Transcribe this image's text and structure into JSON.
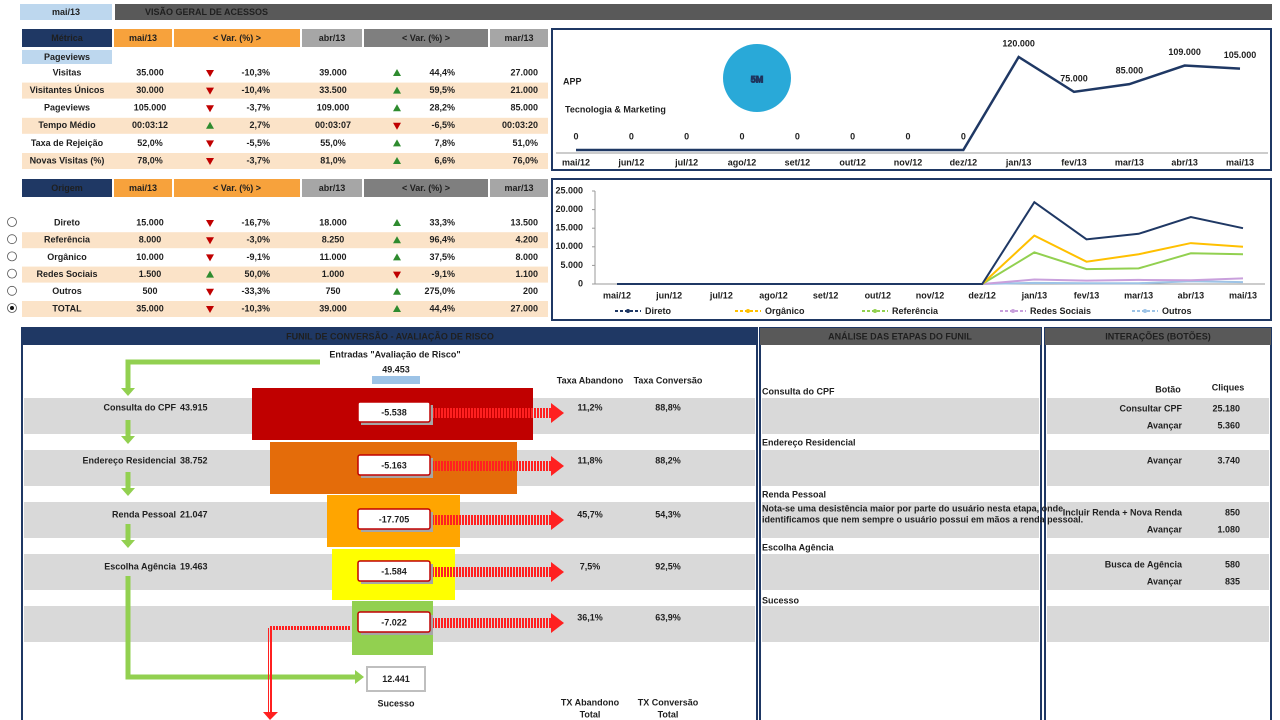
{
  "header": {
    "period": "mai/13",
    "title": "VISÃO GERAL DE ACESSOS"
  },
  "metrics_table": {
    "columns": [
      "Métrica",
      "mai/13",
      "< Var. (%) >",
      "abr/13",
      "< Var. (%) >",
      "mar/13"
    ],
    "section": "Pageviews",
    "rows": [
      {
        "label": "Visitas",
        "cells": [
          "35.000",
          "-10,3%",
          "39.000",
          "44,4%",
          "27.000"
        ],
        "trend": [
          "down",
          "up"
        ]
      },
      {
        "label": "Visitantes Únicos",
        "cells": [
          "30.000",
          "-10,4%",
          "33.500",
          "59,5%",
          "21.000"
        ],
        "trend": [
          "down",
          "up"
        ]
      },
      {
        "label": "Pageviews",
        "cells": [
          "105.000",
          "-3,7%",
          "109.000",
          "28,2%",
          "85.000"
        ],
        "trend": [
          "down",
          "up"
        ]
      },
      {
        "label": "Tempo Médio",
        "cells": [
          "00:03:12",
          "2,7%",
          "00:03:07",
          "-6,5%",
          "00:03:20"
        ],
        "trend": [
          "up",
          "down"
        ]
      },
      {
        "label": "Taxa de Rejeição",
        "cells": [
          "52,0%",
          "-5,5%",
          "55,0%",
          "7,8%",
          "51,0%"
        ],
        "trend": [
          "down",
          "up"
        ]
      },
      {
        "label": "Novas Visitas (%)",
        "cells": [
          "78,0%",
          "-3,7%",
          "81,0%",
          "6,6%",
          "76,0%"
        ],
        "trend": [
          "down",
          "up"
        ]
      }
    ]
  },
  "origin_table": {
    "columns": [
      "Origem",
      "mai/13",
      "< Var. (%) >",
      "abr/13",
      "< Var. (%) >",
      "mar/13"
    ],
    "selected": 5,
    "rows": [
      {
        "label": "Direto",
        "cells": [
          "15.000",
          "-16,7%",
          "18.000",
          "33,3%",
          "13.500"
        ],
        "trend": [
          "down",
          "up"
        ]
      },
      {
        "label": "Referência",
        "cells": [
          "8.000",
          "-3,0%",
          "8.250",
          "96,4%",
          "4.200"
        ],
        "trend": [
          "down",
          "up"
        ]
      },
      {
        "label": "Orgânico",
        "cells": [
          "10.000",
          "-9,1%",
          "11.000",
          "37,5%",
          "8.000"
        ],
        "trend": [
          "down",
          "up"
        ]
      },
      {
        "label": "Redes Sociais",
        "cells": [
          "1.500",
          "50,0%",
          "1.000",
          "-9,1%",
          "1.100"
        ],
        "trend": [
          "up",
          "down"
        ]
      },
      {
        "label": "Outros",
        "cells": [
          "500",
          "-33,3%",
          "750",
          "275,0%",
          "200"
        ],
        "trend": [
          "down",
          "up"
        ]
      },
      {
        "label": "TOTAL",
        "cells": [
          "35.000",
          "-10,3%",
          "39.000",
          "44,4%",
          "27.000"
        ],
        "trend": [
          "down",
          "up"
        ]
      }
    ]
  },
  "logo": {
    "name_left": "APP",
    "name_right": "5M",
    "tagline": "Tecnologia & Marketing"
  },
  "chart_data": [
    {
      "type": "line",
      "color": "#1f3864",
      "categories": [
        "mai/12",
        "jun/12",
        "jul/12",
        "ago/12",
        "set/12",
        "out/12",
        "nov/12",
        "dez/12",
        "jan/13",
        "fev/13",
        "mar/13",
        "abr/13",
        "mai/13"
      ],
      "values": [
        0,
        0,
        0,
        0,
        0,
        0,
        0,
        0,
        120000,
        75000,
        85000,
        109000,
        105000
      ],
      "value_labels": [
        "0",
        "0",
        "0",
        "0",
        "0",
        "0",
        "0",
        "0",
        "120.000",
        "75.000",
        "85.000",
        "109.000",
        "105.000"
      ]
    },
    {
      "type": "line",
      "legend": "bottom",
      "categories": [
        "mai/12",
        "jun/12",
        "jul/12",
        "ago/12",
        "set/12",
        "out/12",
        "nov/12",
        "dez/12",
        "jan/13",
        "fev/13",
        "mar/13",
        "abr/13",
        "mai/13"
      ],
      "ylim": [
        0,
        25000
      ],
      "yticks": [
        0,
        {
          "value": 5000,
          "label": "5.000"
        },
        {
          "value": 10000,
          "label": "10.000"
        },
        {
          "value": 15000,
          "label": "15.000"
        },
        {
          "value": 20000,
          "label": "20.000"
        },
        {
          "value": 25000,
          "label": "25.000"
        }
      ],
      "series": [
        {
          "name": "Direto",
          "color": "#1f3864",
          "values": [
            0,
            0,
            0,
            0,
            0,
            0,
            0,
            0,
            22000,
            12000,
            13500,
            18000,
            15000
          ]
        },
        {
          "name": "Orgânico",
          "color": "#ffc000",
          "values": [
            0,
            0,
            0,
            0,
            0,
            0,
            0,
            0,
            13000,
            6000,
            8000,
            11000,
            10000
          ]
        },
        {
          "name": "Referência",
          "color": "#92d050",
          "values": [
            0,
            0,
            0,
            0,
            0,
            0,
            0,
            0,
            8500,
            4000,
            4200,
            8250,
            8000
          ]
        },
        {
          "name": "Redes Sociais",
          "color": "#c9a0dc",
          "values": [
            0,
            0,
            0,
            0,
            0,
            0,
            0,
            0,
            1200,
            900,
            1100,
            1000,
            1500
          ]
        },
        {
          "name": "Outros",
          "color": "#9dc3e6",
          "values": [
            0,
            0,
            0,
            0,
            0,
            0,
            0,
            0,
            300,
            200,
            200,
            750,
            500
          ]
        }
      ]
    }
  ],
  "funnel": {
    "title": "FUNIL DE CONVERSÃO - AVALIAÇÃO DE RISCO",
    "entry_label": "Entradas \"Avaliação de Risco\"",
    "entry_value": "49.453",
    "header_abandon": "Taxa Abandono",
    "header_conversion": "Taxa Conversão",
    "stages": [
      {
        "name": "Consulta do CPF",
        "value": "43.915",
        "loss": "-5.538",
        "abandon": "11,2%",
        "conversion": "88,8%"
      },
      {
        "name": "Endereço Residencial",
        "value": "38.752",
        "loss": "-5.163",
        "abandon": "11,8%",
        "conversion": "88,2%"
      },
      {
        "name": "Renda Pessoal",
        "value": "21.047",
        "loss": "-17.705",
        "abandon": "45,7%",
        "conversion": "54,3%"
      },
      {
        "name": "Escolha Agência",
        "value": "19.463",
        "loss": "-1.584",
        "abandon": "7,5%",
        "conversion": "92,5%"
      },
      {
        "loss": "-7.022",
        "abandon": "36,1%",
        "conversion": "63,9%"
      }
    ],
    "success_value": "12.441",
    "success_label": "Sucesso",
    "total_abandon": [
      "TX Abandono",
      "Total"
    ],
    "total_conversion": [
      "TX Conversão",
      "Total"
    ]
  },
  "analysis": {
    "title": "ANÁLISE DAS ETAPAS DO FUNIL",
    "steps": [
      {
        "name": "Consulta do CPF"
      },
      {
        "name": "Endereço Residencial"
      },
      {
        "name": "Renda Pessoal",
        "note": [
          "Nota-se uma desistência maior por parte do usuário nesta etapa, onde",
          "identificamos que nem sempre o usuário possui em mãos a renda pessoal."
        ]
      },
      {
        "name": "Escolha Agência"
      },
      {
        "name": "Sucesso"
      }
    ]
  },
  "interactions": {
    "title": "INTERAÇÕES (BOTÕES)",
    "header": [
      "Botão",
      "Cliques"
    ],
    "rows": [
      [
        "Consultar CPF",
        "25.180"
      ],
      [
        "Avançar",
        "5.360"
      ],
      [
        "Avançar",
        "3.740"
      ],
      [
        "Incluir Renda + Nova Renda",
        "850"
      ],
      [
        "Avançar",
        "1.080"
      ],
      [
        "Busca de Agência",
        "580"
      ],
      [
        "Avançar",
        "835"
      ]
    ]
  }
}
